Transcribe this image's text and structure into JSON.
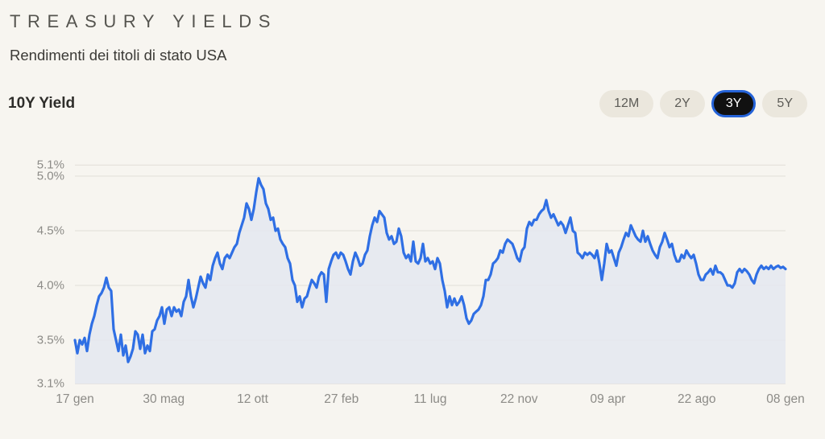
{
  "header": {
    "title": "TREASURY YIELDS",
    "subtitle": "Rendimenti dei titoli di stato USA",
    "series_label": "10Y Yield"
  },
  "range_selector": {
    "options": [
      {
        "label": "12M",
        "active": false
      },
      {
        "label": "2Y",
        "active": false
      },
      {
        "label": "3Y",
        "active": true
      },
      {
        "label": "5Y",
        "active": false
      }
    ]
  },
  "colors": {
    "background": "#f7f5f0",
    "line": "#2f6fe4",
    "fill": "#e4e7f0",
    "grid": "#e6e3dc",
    "active_button_bg": "#111111",
    "active_button_border": "#2563d8"
  },
  "chart_data": {
    "type": "area",
    "title": "10Y Yield",
    "xlabel": "",
    "ylabel": "",
    "ylim": [
      3.1,
      5.1
    ],
    "y_ticks": [
      {
        "value": 5.1,
        "label": "5.1%"
      },
      {
        "value": 5.0,
        "label": "5.0%"
      },
      {
        "value": 4.5,
        "label": "4.5%"
      },
      {
        "value": 4.0,
        "label": "4.0%"
      },
      {
        "value": 3.5,
        "label": "3.5%"
      },
      {
        "value": 3.1,
        "label": "3.1%"
      }
    ],
    "x_ticks": [
      {
        "label": "17 gen",
        "pos": 0.0
      },
      {
        "label": "30 mag",
        "pos": 0.125
      },
      {
        "label": "12 ott",
        "pos": 0.25
      },
      {
        "label": "27 feb",
        "pos": 0.375
      },
      {
        "label": "11 lug",
        "pos": 0.5
      },
      {
        "label": "22 nov",
        "pos": 0.625
      },
      {
        "label": "09 apr",
        "pos": 0.75
      },
      {
        "label": "22 ago",
        "pos": 0.875
      },
      {
        "label": "08 gen",
        "pos": 1.0
      }
    ],
    "grid": true,
    "legend": "none",
    "series": [
      {
        "name": "10Y Yield",
        "values": [
          3.5,
          3.38,
          3.5,
          3.46,
          3.52,
          3.4,
          3.55,
          3.65,
          3.72,
          3.82,
          3.9,
          3.93,
          3.98,
          4.07,
          3.98,
          3.95,
          3.6,
          3.5,
          3.4,
          3.55,
          3.36,
          3.45,
          3.3,
          3.35,
          3.42,
          3.58,
          3.55,
          3.42,
          3.55,
          3.38,
          3.45,
          3.4,
          3.58,
          3.6,
          3.68,
          3.72,
          3.8,
          3.65,
          3.78,
          3.8,
          3.72,
          3.8,
          3.76,
          3.78,
          3.72,
          3.85,
          3.9,
          4.05,
          3.9,
          3.8,
          3.88,
          3.98,
          4.08,
          4.02,
          3.98,
          4.1,
          4.05,
          4.18,
          4.25,
          4.3,
          4.2,
          4.15,
          4.25,
          4.28,
          4.25,
          4.3,
          4.35,
          4.38,
          4.48,
          4.55,
          4.62,
          4.75,
          4.7,
          4.6,
          4.7,
          4.85,
          4.98,
          4.92,
          4.88,
          4.75,
          4.7,
          4.6,
          4.62,
          4.5,
          4.52,
          4.42,
          4.38,
          4.35,
          4.25,
          4.2,
          4.05,
          4.0,
          3.85,
          3.9,
          3.8,
          3.88,
          3.9,
          3.98,
          4.05,
          4.02,
          3.98,
          4.08,
          4.12,
          4.1,
          3.85,
          4.15,
          4.22,
          4.28,
          4.3,
          4.25,
          4.3,
          4.28,
          4.22,
          4.15,
          4.1,
          4.22,
          4.3,
          4.25,
          4.18,
          4.2,
          4.28,
          4.32,
          4.45,
          4.55,
          4.62,
          4.58,
          4.68,
          4.65,
          4.62,
          4.48,
          4.42,
          4.45,
          4.38,
          4.4,
          4.52,
          4.45,
          4.3,
          4.25,
          4.28,
          4.22,
          4.4,
          4.22,
          4.2,
          4.25,
          4.38,
          4.22,
          4.25,
          4.2,
          4.22,
          4.15,
          4.25,
          4.2,
          4.05,
          3.95,
          3.8,
          3.9,
          3.82,
          3.88,
          3.82,
          3.85,
          3.9,
          3.82,
          3.7,
          3.65,
          3.68,
          3.74,
          3.76,
          3.78,
          3.82,
          3.9,
          4.05,
          4.05,
          4.1,
          4.2,
          4.22,
          4.25,
          4.32,
          4.3,
          4.38,
          4.42,
          4.4,
          4.38,
          4.32,
          4.25,
          4.22,
          4.32,
          4.35,
          4.52,
          4.58,
          4.55,
          4.6,
          4.6,
          4.65,
          4.68,
          4.7,
          4.78,
          4.68,
          4.62,
          4.65,
          4.6,
          4.55,
          4.58,
          4.55,
          4.48,
          4.55,
          4.62,
          4.5,
          4.48,
          4.3,
          4.28,
          4.25,
          4.3,
          4.28,
          4.3,
          4.28,
          4.25,
          4.32,
          4.2,
          4.05,
          4.2,
          4.38,
          4.3,
          4.32,
          4.25,
          4.18,
          4.3,
          4.35,
          4.42,
          4.48,
          4.45,
          4.55,
          4.5,
          4.45,
          4.42,
          4.4,
          4.5,
          4.4,
          4.45,
          4.38,
          4.32,
          4.28,
          4.25,
          4.35,
          4.4,
          4.48,
          4.42,
          4.35,
          4.38,
          4.28,
          4.22,
          4.22,
          4.28,
          4.25,
          4.32,
          4.28,
          4.25,
          4.28,
          4.2,
          4.1,
          4.05,
          4.05,
          4.1,
          4.12,
          4.15,
          4.1,
          4.18,
          4.12,
          4.12,
          4.1,
          4.05,
          4.0,
          4.0,
          3.98,
          4.02,
          4.12,
          4.15,
          4.12,
          4.15,
          4.13,
          4.1,
          4.05,
          4.02,
          4.1,
          4.15,
          4.18,
          4.15,
          4.17,
          4.15,
          4.18,
          4.15,
          4.17,
          4.18,
          4.16,
          4.17,
          4.15
        ]
      }
    ]
  }
}
